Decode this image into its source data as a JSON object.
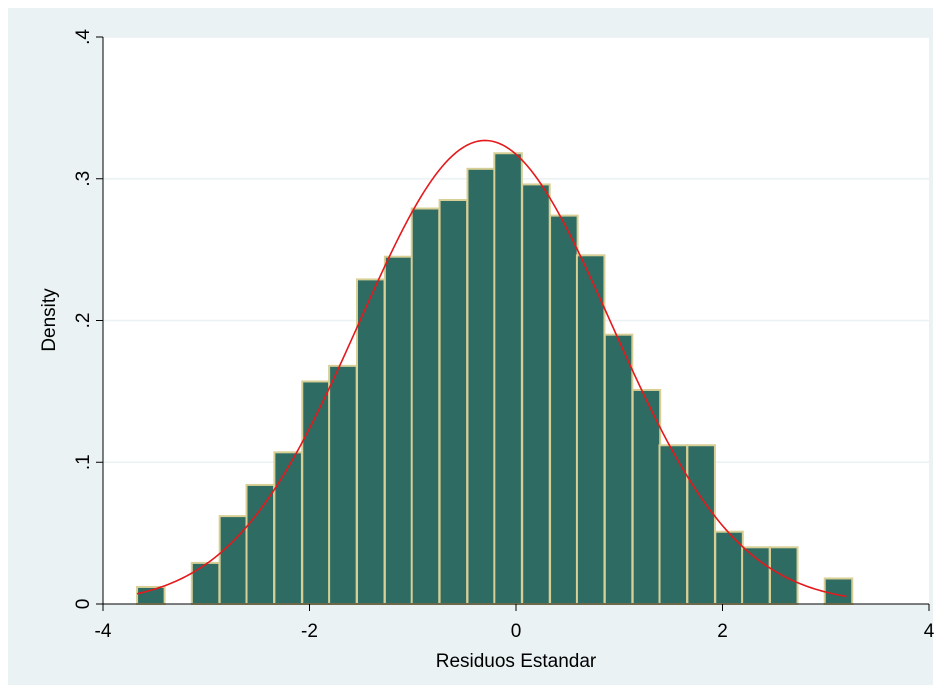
{
  "chart_data": {
    "type": "bar",
    "title": "",
    "xlabel": "Residuos Estandar",
    "ylabel": "Density",
    "xlim": [
      -4,
      4
    ],
    "ylim": [
      0,
      0.4
    ],
    "x_ticks": [
      -4,
      -2,
      0,
      2,
      4
    ],
    "x_tick_labels": [
      "-4",
      "-2",
      "0",
      "2",
      "4"
    ],
    "y_ticks": [
      0,
      0.1,
      0.2,
      0.3,
      0.4
    ],
    "y_tick_labels": [
      "0",
      ".1",
      ".2",
      ".3",
      ".4"
    ],
    "grid": "horizontal",
    "bin_width": 0.2667,
    "bins": [
      {
        "start": -3.67,
        "density": 0.012
      },
      {
        "start": -3.14,
        "density": 0.029
      },
      {
        "start": -2.87,
        "density": 0.062
      },
      {
        "start": -2.61,
        "density": 0.084
      },
      {
        "start": -2.34,
        "density": 0.107
      },
      {
        "start": -2.07,
        "density": 0.157
      },
      {
        "start": -1.81,
        "density": 0.168
      },
      {
        "start": -1.54,
        "density": 0.229
      },
      {
        "start": -1.27,
        "density": 0.245
      },
      {
        "start": -1.01,
        "density": 0.279
      },
      {
        "start": -0.74,
        "density": 0.285
      },
      {
        "start": -0.47,
        "density": 0.307
      },
      {
        "start": -0.21,
        "density": 0.318
      },
      {
        "start": 0.06,
        "density": 0.296
      },
      {
        "start": 0.33,
        "density": 0.274
      },
      {
        "start": 0.59,
        "density": 0.246
      },
      {
        "start": 0.86,
        "density": 0.19
      },
      {
        "start": 1.13,
        "density": 0.151
      },
      {
        "start": 1.39,
        "density": 0.112
      },
      {
        "start": 1.66,
        "density": 0.112
      },
      {
        "start": 1.93,
        "density": 0.051
      },
      {
        "start": 2.19,
        "density": 0.04
      },
      {
        "start": 2.46,
        "density": 0.04
      },
      {
        "start": 2.99,
        "density": 0.018
      }
    ],
    "normal_curve": {
      "mean": -0.3,
      "sd": 1.22,
      "x_range": [
        -3.67,
        3.2
      ]
    },
    "colors": {
      "bar_fill": "#2e6b63",
      "bar_edge": "#d8cf96",
      "curve": "#e5191c",
      "plot_bg": "#ffffff",
      "outer_bg": "#eaf2f3",
      "grid": "#eaf2f3"
    }
  }
}
